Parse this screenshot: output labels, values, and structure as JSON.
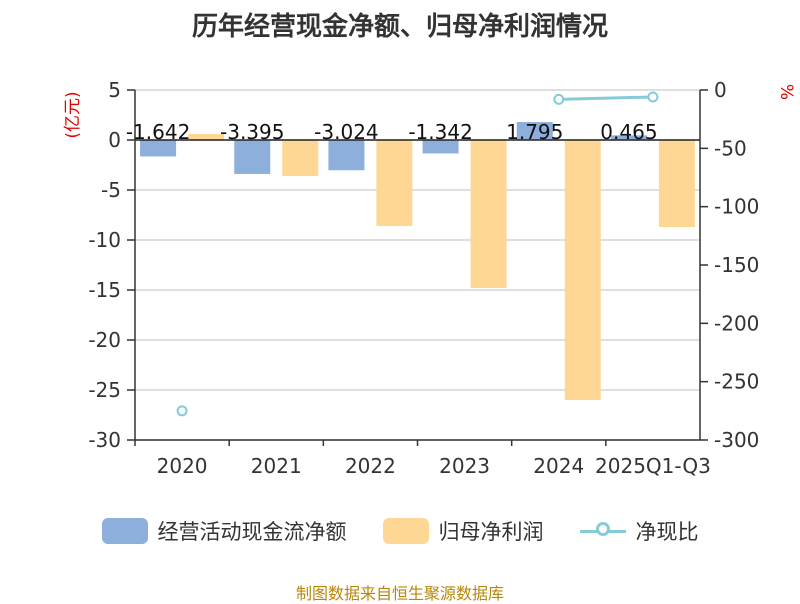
{
  "title": "历年经营现金净额、归母净利润情况",
  "source": "制图数据来自恒生聚源数据库",
  "colors": {
    "cash_flow": "#8eaedb",
    "net_profit": "#ffd794",
    "ratio": "#86ccd8",
    "unit_label": "#e00000",
    "axis": "#333333",
    "grid": "#cccccc"
  },
  "chart_data": {
    "type": "bar",
    "title": "历年经营现金净额、归母净利润情况",
    "categories": [
      "2020",
      "2021",
      "2022",
      "2023",
      "2024",
      "2025Q1-Q3"
    ],
    "series": [
      {
        "name": "经营活动现金流净额",
        "axis": "left",
        "type": "bar",
        "values": [
          -1.642,
          -3.395,
          -3.024,
          -1.342,
          1.795,
          0.465
        ]
      },
      {
        "name": "归母净利润",
        "axis": "left",
        "type": "bar",
        "values": [
          0.6,
          -3.6,
          -8.6,
          -14.8,
          -26.0,
          -8.7
        ]
      },
      {
        "name": "净现比",
        "axis": "right",
        "type": "line",
        "values": [
          -275,
          null,
          null,
          null,
          -8,
          -6
        ]
      }
    ],
    "data_labels": [
      "-1.642",
      "-3.395",
      "-3.024",
      "-1.342",
      "1.795",
      "0.465"
    ],
    "left_axis": {
      "unit": "(亿元)",
      "ylim": [
        -30,
        5
      ],
      "ticks": [
        5,
        0,
        -5,
        -10,
        -15,
        -20,
        -25,
        -30
      ]
    },
    "right_axis": {
      "unit": "%",
      "ylim": [
        -300,
        0
      ],
      "ticks": [
        0,
        -50,
        -100,
        -150,
        -200,
        -250,
        -300
      ]
    },
    "legend_position": "bottom",
    "grid": true
  }
}
